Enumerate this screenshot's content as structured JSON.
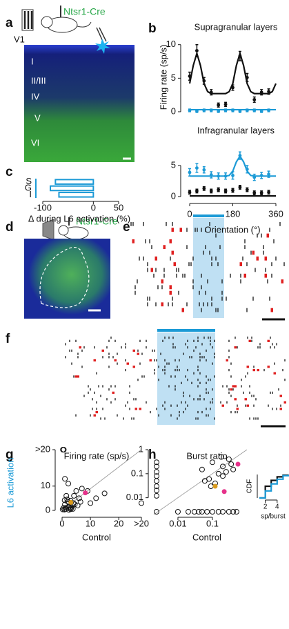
{
  "figure": {
    "panels": [
      "a",
      "b",
      "c",
      "d",
      "e",
      "f",
      "g",
      "h"
    ],
    "cre_a": "Ntsr1-Cre",
    "v1": "V1",
    "layers": [
      "I",
      "II/III",
      "IV",
      "V",
      "VI"
    ],
    "cre_d": "Ntsr1-Cre"
  },
  "chart_data": [
    {
      "type": "line",
      "title": "Supragranular layers",
      "y_label": "Firing rate (sp/s)",
      "xlim": [
        0,
        360
      ],
      "ylim": [
        0,
        11
      ],
      "yticks": [
        0,
        5,
        10
      ],
      "series": [
        {
          "style": "points",
          "color": "#111111",
          "x": [
            0,
            30,
            60,
            90,
            120,
            150,
            180,
            210,
            240,
            270,
            300,
            330
          ],
          "values": [
            5.3,
            9.1,
            4.6,
            2.9,
            1.0,
            1.1,
            3.6,
            8.3,
            5.1,
            1.8,
            2.9,
            3.0
          ],
          "errors": [
            0.6,
            0.9,
            0.5,
            0.4,
            0.3,
            0.3,
            0.4,
            0.7,
            0.6,
            0.4,
            0.4,
            0.4
          ]
        },
        {
          "style": "line",
          "color": "#111111",
          "x": [
            0,
            15,
            30,
            45,
            60,
            75,
            90,
            105,
            120,
            135,
            150,
            165,
            180,
            195,
            210,
            225,
            240,
            255,
            270,
            285,
            300,
            315,
            330,
            345,
            360
          ],
          "values": [
            4.2,
            6.9,
            8.7,
            6.9,
            4.2,
            3.0,
            2.7,
            2.7,
            2.7,
            2.7,
            2.7,
            3.0,
            4.2,
            6.9,
            8.7,
            6.9,
            4.2,
            3.0,
            2.7,
            2.7,
            2.7,
            2.7,
            2.7,
            3.0,
            4.2
          ]
        },
        {
          "style": "points",
          "color": "#1b9ad6",
          "x": [
            0,
            30,
            60,
            90,
            120,
            150,
            180,
            210,
            240,
            270,
            300,
            330
          ],
          "values": [
            0.2,
            0.1,
            0.2,
            0.2,
            0.1,
            0.2,
            0.2,
            0.1,
            0.2,
            0.2,
            0.1,
            0.2
          ],
          "errors": [
            0.2,
            0.2,
            0.2,
            0.2,
            0.2,
            0.2,
            0.2,
            0.2,
            0.2,
            0.2,
            0.2,
            0.2
          ]
        },
        {
          "style": "line",
          "color": "#1b9ad6",
          "x": [
            0,
            360
          ],
          "values": [
            0.3,
            0.3
          ]
        }
      ]
    },
    {
      "type": "line",
      "title": "Infragranular layers",
      "x_label": "Orientation (°)",
      "xlim": [
        0,
        360
      ],
      "ylim": [
        0,
        6
      ],
      "xticks": [
        0,
        180,
        360
      ],
      "yticks": [
        0,
        5
      ],
      "series": [
        {
          "style": "points",
          "color": "#1b9ad6",
          "x": [
            0,
            30,
            60,
            90,
            120,
            150,
            180,
            210,
            240,
            270,
            300,
            330
          ],
          "values": [
            3.9,
            4.6,
            4.3,
            3.5,
            3.3,
            3.3,
            3.4,
            6.6,
            4.4,
            3.1,
            3.4,
            3.6
          ],
          "errors": [
            0.6,
            0.7,
            0.5,
            0.5,
            0.5,
            0.5,
            0.6,
            0.6,
            0.6,
            0.5,
            0.5,
            0.5
          ]
        },
        {
          "style": "line",
          "color": "#1b9ad6",
          "x": [
            0,
            15,
            30,
            45,
            60,
            75,
            90,
            105,
            120,
            135,
            150,
            165,
            180,
            195,
            210,
            225,
            240,
            255,
            270,
            285,
            300,
            315,
            330,
            345,
            360
          ],
          "values": [
            3.3,
            3.3,
            3.3,
            3.3,
            3.3,
            3.3,
            3.3,
            3.3,
            3.3,
            3.3,
            3.3,
            3.4,
            4.1,
            5.6,
            6.5,
            5.6,
            4.1,
            3.4,
            3.3,
            3.3,
            3.3,
            3.3,
            3.3,
            3.3,
            3.3
          ]
        },
        {
          "style": "points",
          "color": "#111111",
          "x": [
            0,
            30,
            60,
            90,
            120,
            150,
            180,
            210,
            240,
            270,
            300,
            330
          ],
          "values": [
            0.7,
            0.9,
            1.3,
            0.9,
            1.1,
            0.9,
            1.0,
            1.5,
            1.1,
            0.6,
            0.6,
            0.7
          ],
          "errors": [
            0.3,
            0.3,
            0.3,
            0.3,
            0.3,
            0.3,
            0.3,
            0.3,
            0.3,
            0.3,
            0.3,
            0.3
          ]
        },
        {
          "style": "line",
          "color": "#111111",
          "x": [
            0,
            360
          ],
          "values": [
            0.1,
            0.1
          ]
        }
      ]
    },
    {
      "type": "bar",
      "orientation": "horizontal",
      "x_label": "Δ during L6 activation (%)",
      "categories": [
        "S",
        "G",
        "I"
      ],
      "values": [
        -75,
        -85,
        -68
      ],
      "color": "#1b9ad6",
      "xlim": [
        -100,
        50
      ],
      "xticks": [
        -100,
        0,
        50
      ]
    },
    {
      "type": "scatter",
      "title": "Firing rate (sp/s)",
      "x_label": "Control",
      "y_label": "L6 activation",
      "y_label_color": "#1b9ad6",
      "xlim": [
        0,
        28
      ],
      "ylim": [
        0,
        25
      ],
      "xticks": [
        0,
        10,
        20,
        {
          "value": 28,
          "label": ">20"
        }
      ],
      "yticks": [
        0,
        10,
        {
          "value": 25,
          "label": ">20"
        }
      ],
      "diagonal": true,
      "series": [
        {
          "color": "#111111",
          "filled": false,
          "x": [
            0.5,
            1,
            1.2,
            2,
            2.5,
            3,
            3.5,
            4,
            1.5,
            0.8,
            2.2,
            5,
            6,
            4.5,
            3.2,
            1.8,
            0.3,
            7,
            9,
            12,
            10,
            5.5,
            2.8,
            4.2,
            15,
            0.6,
            1,
            3,
            28,
            2.4,
            0.2,
            1.4,
            3.8,
            6.5,
            0.9
          ],
          "values": [
            1.0,
            2.5,
            0.5,
            3.5,
            1.5,
            4.0,
            2.0,
            3.0,
            6.0,
            0.3,
            11,
            8,
            5,
            2.5,
            0.8,
            4.5,
            25,
            9,
            8,
            5,
            3,
            2,
            1,
            6,
            7,
            25,
            13,
            0.5,
            3,
            0.2,
            0.4,
            1.1,
            0.6,
            3.5,
            4.2
          ]
        },
        {
          "color": "#e6318a",
          "filled": true,
          "x": [
            8.2
          ],
          "values": [
            7.2
          ]
        },
        {
          "color": "#d99a1c",
          "filled": true,
          "x": [
            3.1
          ],
          "values": [
            3.3
          ]
        }
      ]
    },
    {
      "type": "scatter",
      "title": "Burst ratio",
      "x_label": "Control",
      "log": true,
      "xlim": [
        0.002,
        1
      ],
      "ylim": [
        0.002,
        1
      ],
      "xticks": [
        0.01,
        0.1
      ],
      "yticks": [
        0.01,
        0.1,
        1
      ],
      "diagonal": true,
      "series": [
        {
          "color": "#111111",
          "filled": false,
          "x": [
            0,
            0,
            0,
            0,
            0,
            0,
            0,
            0,
            0,
            0.02,
            0.03,
            0.05,
            0.07,
            0.1,
            0.15,
            0.2,
            0.3,
            0.4,
            0.01,
            0.04,
            0.5,
            0.1,
            0.2,
            0.15,
            0.3,
            0.08,
            0.12,
            0.25,
            0.05,
            0.18,
            0.35,
            0.09,
            0.2,
            0.4,
            0.06
          ],
          "values": [
            0.3,
            0.2,
            0.12,
            0.05,
            0.03,
            0.02,
            0.012,
            0.08,
            0,
            0,
            0,
            0,
            0,
            0,
            0,
            0,
            0,
            0,
            0,
            0,
            0,
            0.3,
            0.2,
            0.1,
            0.4,
            0.06,
            0.04,
            0.12,
            0.15,
            0.5,
            0.25,
            0.03,
            0.08,
            0.15,
            0.05
          ]
        },
        {
          "color": "#e6318a",
          "filled": true,
          "x": [
            0.55,
            0.22
          ],
          "values": [
            0.25,
            0.018
          ]
        },
        {
          "color": "#d99a1c",
          "filled": true,
          "x": [
            0.12
          ],
          "values": [
            0.03
          ]
        }
      ]
    },
    {
      "type": "line",
      "x_label": "sp/burst",
      "y_label": "CDF",
      "xlim": [
        1,
        6
      ],
      "ylim": [
        0,
        1
      ],
      "xticks": [
        2,
        4
      ],
      "series": [
        {
          "style": "step",
          "color": "#111111",
          "x": [
            1,
            2,
            3,
            4,
            5,
            6
          ],
          "values": [
            0,
            0.5,
            0.75,
            0.9,
            0.97,
            1
          ]
        },
        {
          "style": "step",
          "color": "#1b9ad6",
          "x": [
            1,
            2,
            3,
            4,
            5,
            6
          ],
          "values": [
            0,
            0.3,
            0.6,
            0.8,
            0.95,
            1
          ]
        }
      ]
    }
  ]
}
